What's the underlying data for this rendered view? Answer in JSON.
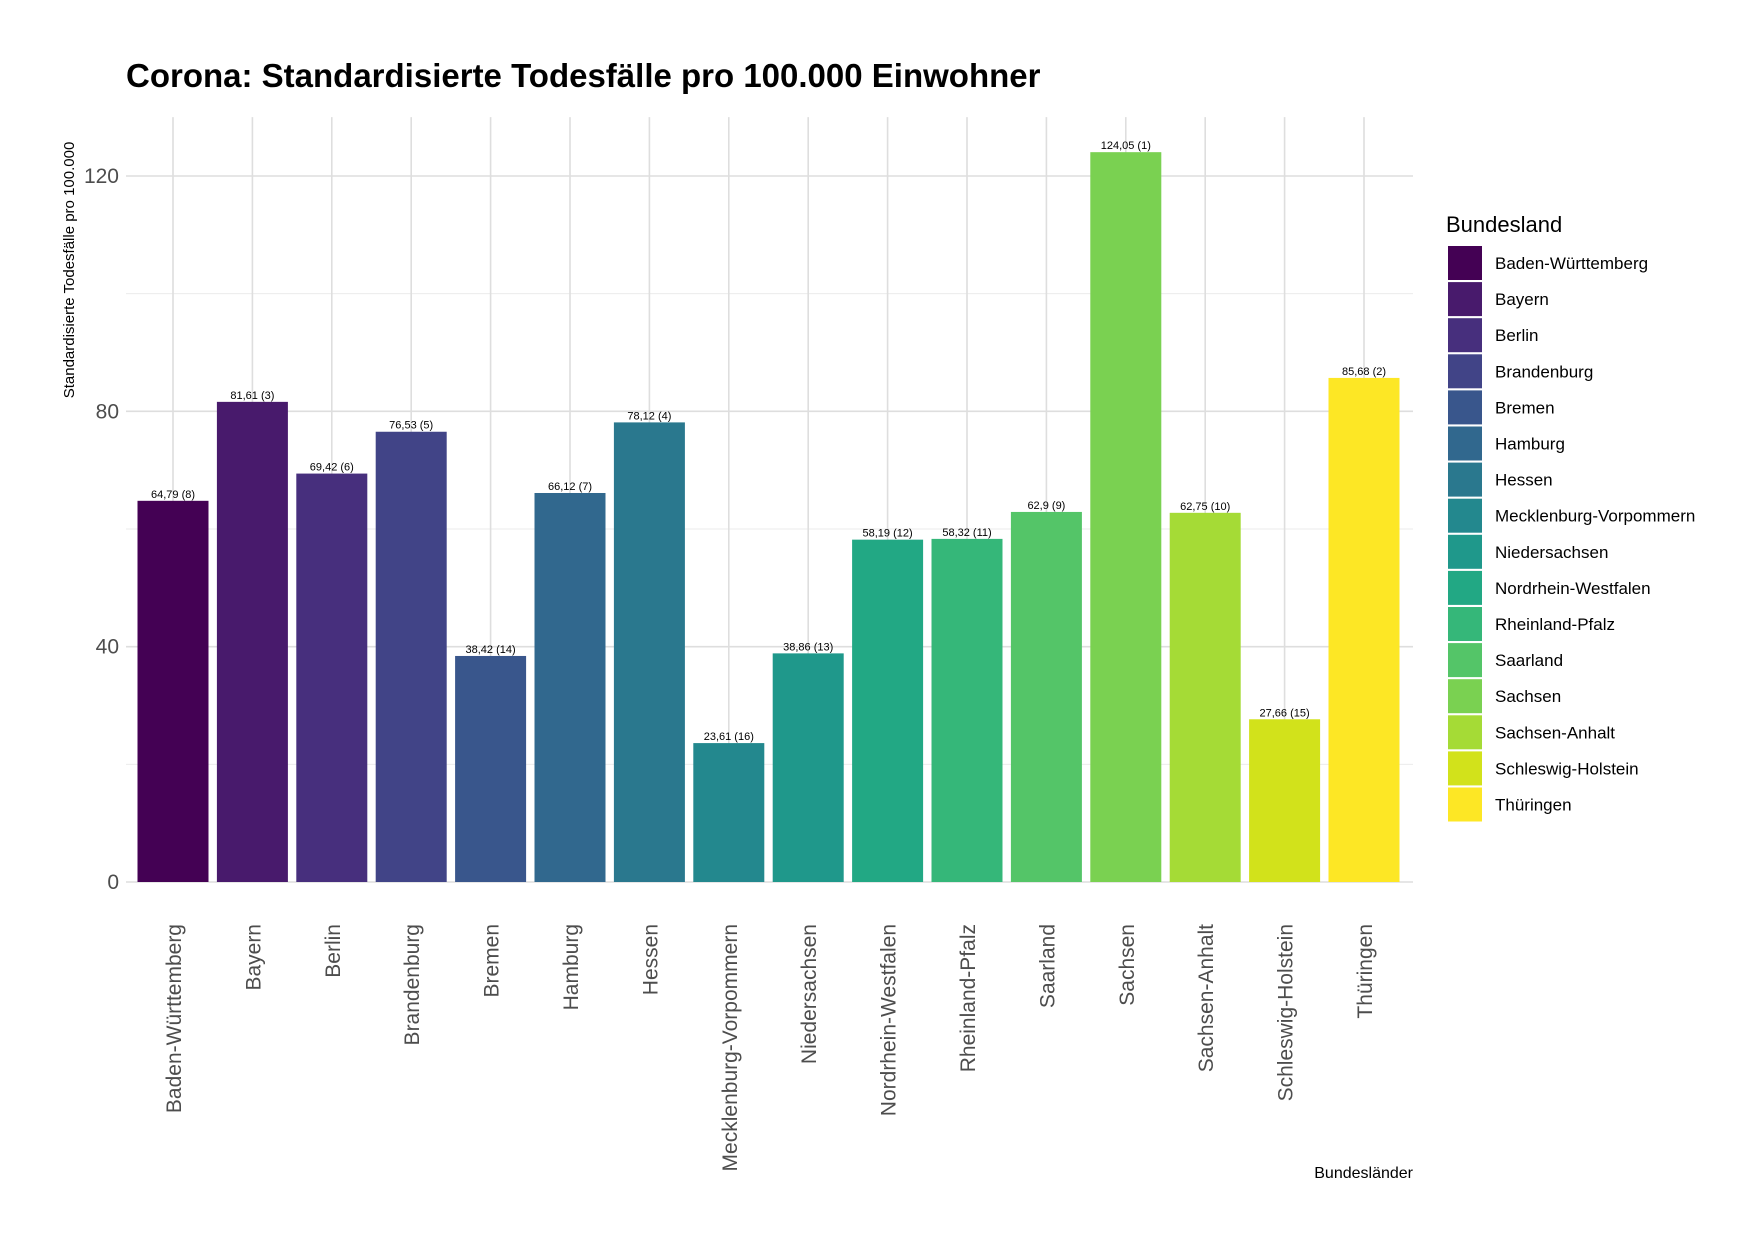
{
  "chart_data": {
    "type": "bar",
    "title": "Corona: Standardisierte Todesfälle pro 100.000 Einwohner",
    "xlabel": "Bundesländer",
    "ylabel": "Standardisierte Todesfälle pro 100.000",
    "ylim": [
      0,
      130
    ],
    "yticks": [
      0,
      40,
      80,
      120
    ],
    "grid": true,
    "legend_position": "right",
    "legend_title": "Bundesland",
    "categories": [
      "Baden-Württemberg",
      "Bayern",
      "Berlin",
      "Brandenburg",
      "Bremen",
      "Hamburg",
      "Hessen",
      "Mecklenburg-Vorpommern",
      "Niedersachsen",
      "Nordrhein-Westfalen",
      "Rheinland-Pfalz",
      "Saarland",
      "Sachsen",
      "Sachsen-Anhalt",
      "Schleswig-Holstein",
      "Thüringen"
    ],
    "values": [
      64.79,
      81.61,
      69.42,
      76.53,
      38.42,
      66.12,
      78.12,
      23.61,
      38.86,
      58.19,
      58.32,
      62.9,
      124.05,
      62.75,
      27.66,
      85.68
    ],
    "data_labels": [
      "64,79 (8)",
      "81,61 (3)",
      "69,42 (6)",
      "76,53 (5)",
      "38,42 (14)",
      "66,12 (7)",
      "78,12 (4)",
      "23,61 (16)",
      "38,86 (13)",
      "58,19 (12)",
      "58,32 (11)",
      "62,9 (9)",
      "124,05 (1)",
      "62,75 (10)",
      "27,66 (15)",
      "85,68 (2)"
    ],
    "colors": [
      "#440154",
      "#481A6C",
      "#472F7D",
      "#414487",
      "#39568C",
      "#31688E",
      "#2A788E",
      "#23888E",
      "#1F988B",
      "#22A884",
      "#35B779",
      "#54C568",
      "#7AD151",
      "#A5DB36",
      "#D2E21B",
      "#FDE725"
    ]
  }
}
